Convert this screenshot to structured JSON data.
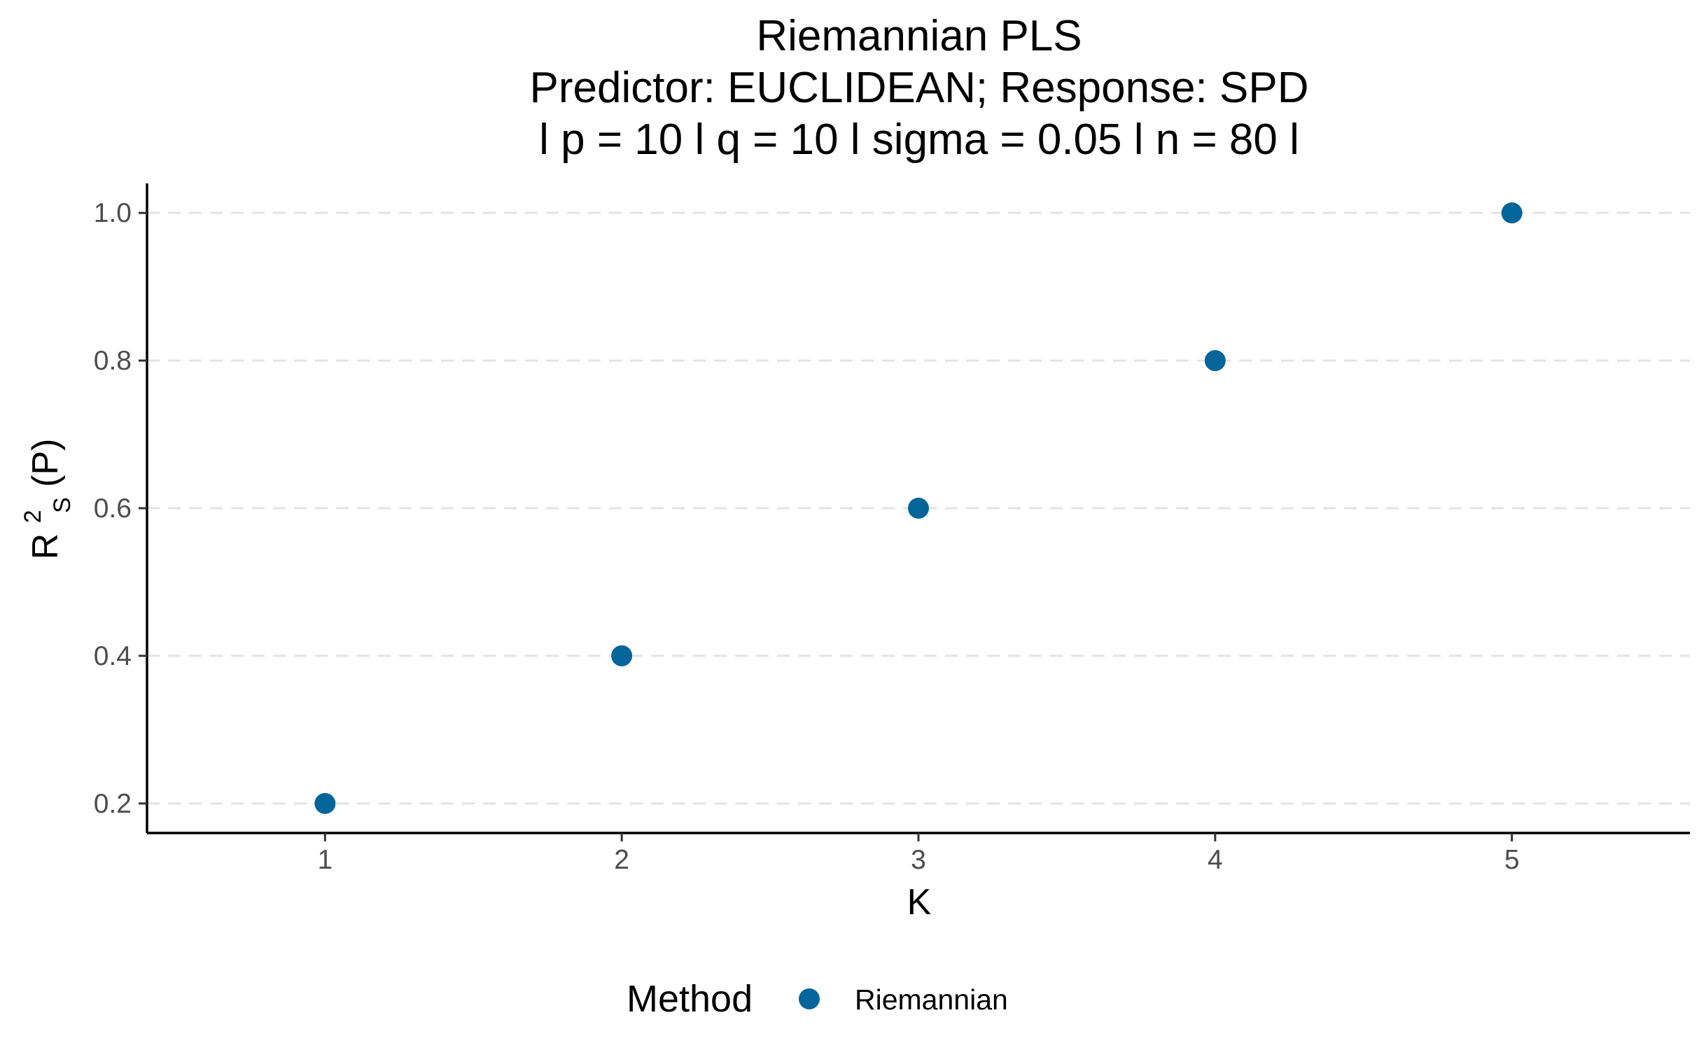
{
  "chart_data": {
    "type": "scatter",
    "title": [
      "Riemannian PLS",
      "Predictor: EUCLIDEAN; Response: SPD",
      "l p = 10 l q = 10 l sigma = 0.05 l n = 80 l"
    ],
    "xlabel": "K",
    "ylabel": {
      "base": "R",
      "superscript": "2",
      "subscript": "S",
      "suffix": " (P)"
    },
    "x_ticks": [
      "1",
      "2",
      "3",
      "4",
      "5"
    ],
    "y_ticks": [
      "0.2",
      "0.4",
      "0.6",
      "0.8",
      "1.0"
    ],
    "xlim": [
      0.4,
      5.6
    ],
    "ylim": [
      0.16,
      1.04
    ],
    "grid": "horizontal-dashed",
    "legend": {
      "title": "Method",
      "placement": "bottom"
    },
    "series": [
      {
        "name": "Riemannian",
        "color": "#03659a",
        "x": [
          1,
          2,
          3,
          4,
          5
        ],
        "y": [
          0.2,
          0.4,
          0.6,
          0.8,
          1.0
        ]
      }
    ]
  }
}
